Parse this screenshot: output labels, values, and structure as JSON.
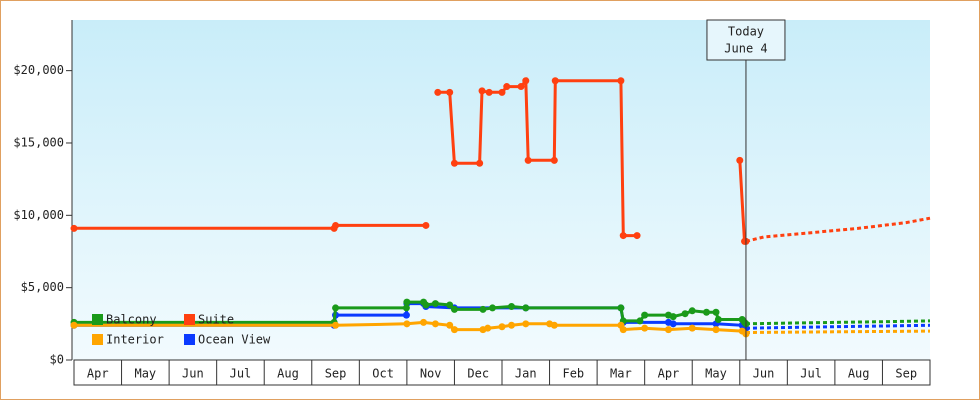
{
  "chart_data": {
    "type": "line",
    "xlim": [
      0,
      18
    ],
    "xticks": [
      {
        "value": 0.5,
        "label": "Apr"
      },
      {
        "value": 1.5,
        "label": "May"
      },
      {
        "value": 2.5,
        "label": "Jun"
      },
      {
        "value": 3.5,
        "label": "Jul"
      },
      {
        "value": 4.5,
        "label": "Aug"
      },
      {
        "value": 5.5,
        "label": "Sep"
      },
      {
        "value": 6.5,
        "label": "Oct"
      },
      {
        "value": 7.5,
        "label": "Nov"
      },
      {
        "value": 8.5,
        "label": "Dec"
      },
      {
        "value": 9.5,
        "label": "Jan"
      },
      {
        "value": 10.5,
        "label": "Feb"
      },
      {
        "value": 11.5,
        "label": "Mar"
      },
      {
        "value": 12.5,
        "label": "Apr"
      },
      {
        "value": 13.5,
        "label": "May"
      },
      {
        "value": 14.5,
        "label": "Jun"
      },
      {
        "value": 15.5,
        "label": "Jul"
      },
      {
        "value": 16.5,
        "label": "Aug"
      },
      {
        "value": 17.5,
        "label": "Sep"
      }
    ],
    "ylim": [
      0,
      23500
    ],
    "yticks": [
      {
        "value": 0,
        "label": "$0"
      },
      {
        "value": 5000,
        "label": "$5,000"
      },
      {
        "value": 10000,
        "label": "$10,000"
      },
      {
        "value": 15000,
        "label": "$15,000"
      },
      {
        "value": 20000,
        "label": "$20,000"
      }
    ],
    "legend": "lower left",
    "annotation": {
      "x": 14.13,
      "lines": [
        "Today",
        "June 4"
      ]
    },
    "series": [
      {
        "name": "Balcony",
        "color": "#1a9a1a",
        "x": [
          0,
          5.47,
          5.5,
          6.99,
          7.0,
          7.35,
          7.4,
          7.6,
          7.9,
          8.0,
          8.6,
          8.8,
          9.2,
          9.5,
          11.5,
          11.55,
          11.9,
          12.0,
          12.5,
          12.6,
          12.85,
          13.0,
          13.3,
          13.5,
          13.55,
          14.05,
          14.1,
          14.13
        ],
        "values": [
          2600,
          2600,
          3600,
          3600,
          4000,
          4000,
          3800,
          3900,
          3800,
          3500,
          3500,
          3600,
          3700,
          3600,
          3600,
          2700,
          2700,
          3100,
          3100,
          3000,
          3200,
          3400,
          3300,
          3300,
          2800,
          2800,
          2600,
          2500
        ],
        "projection": {
          "x": [
            14.13,
            15,
            16,
            17,
            18
          ],
          "values": [
            2500,
            2550,
            2600,
            2650,
            2700
          ]
        }
      },
      {
        "name": "Suite",
        "color": "#ff4010",
        "x": [
          0,
          5.47,
          5.5,
          7.4,
          7.5,
          7.65,
          7.9,
          8.0,
          8.53,
          8.58,
          8.73,
          9.0,
          9.1,
          9.4,
          9.5,
          9.55,
          10.1,
          10.12,
          11.5,
          11.55,
          11.84,
          12.0,
          14.0,
          14.1,
          14.13
        ],
        "values": [
          9100,
          9100,
          9300,
          9300,
          null,
          18500,
          18500,
          13600,
          13600,
          18600,
          18500,
          18500,
          18900,
          18900,
          19300,
          13800,
          13800,
          19300,
          19300,
          8600,
          8600,
          null,
          13800,
          8200,
          8200
        ],
        "projection": {
          "x": [
            14.13,
            14.5,
            15.5,
            16.5,
            17.5,
            18
          ],
          "values": [
            8200,
            8500,
            8800,
            9100,
            9500,
            9800
          ]
        }
      },
      {
        "name": "Interior",
        "color": "#ffa500",
        "x": [
          0,
          5.5,
          7.0,
          7.35,
          7.6,
          7.9,
          8.0,
          8.6,
          8.7,
          9.0,
          9.2,
          9.5,
          10.0,
          10.1,
          11.5,
          11.55,
          12.0,
          12.5,
          13.0,
          13.5,
          14.05,
          14.13
        ],
        "values": [
          2400,
          2400,
          2500,
          2600,
          2500,
          2400,
          2100,
          2100,
          2200,
          2300,
          2400,
          2500,
          2500,
          2400,
          2400,
          2100,
          2200,
          2100,
          2200,
          2100,
          2000,
          1800
        ],
        "projection": {
          "x": [
            14.13,
            16,
            18
          ],
          "values": [
            1900,
            1950,
            2000
          ]
        }
      },
      {
        "name": "Ocean View",
        "color": "#0a3aff",
        "x": [
          0,
          5.47,
          5.5,
          6.99,
          7.0,
          7.35,
          7.4,
          8.0,
          9.5,
          11.5,
          11.55,
          12.5,
          12.6,
          13.5,
          14.05,
          14.13
        ],
        "values": [
          2400,
          2400,
          3100,
          3100,
          3900,
          3900,
          3700,
          3600,
          3600,
          3600,
          2600,
          2600,
          2500,
          2500,
          2400,
          2200
        ],
        "projection": {
          "x": [
            14.13,
            16,
            18
          ],
          "values": [
            2200,
            2300,
            2400
          ]
        }
      }
    ]
  }
}
